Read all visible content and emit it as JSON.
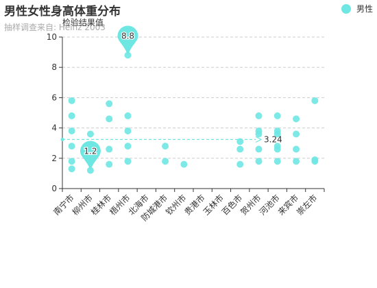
{
  "chart_data": {
    "type": "scatter",
    "title": "男性女性身高体重分布",
    "subtitle": "抽样调查来自: Heinz  2003",
    "ylabel": "检验结果值",
    "ylim": [
      0,
      10
    ],
    "yticks": [
      0,
      2,
      4,
      6,
      8,
      10
    ],
    "grid": true,
    "legend_position": "top-right",
    "categories": [
      "南宁市",
      "柳州市",
      "桂林市",
      "梧州市",
      "北海市",
      "防城港市",
      "钦州市",
      "贵港市",
      "玉林市",
      "百色市",
      "贺州市",
      "河池市",
      "来宾市",
      "崇左市"
    ],
    "series": [
      {
        "name": "男性",
        "color": "#6ee7e3",
        "points": [
          [
            "南宁市",
            5.8
          ],
          [
            "南宁市",
            4.8
          ],
          [
            "南宁市",
            3.8
          ],
          [
            "南宁市",
            2.8
          ],
          [
            "南宁市",
            1.8
          ],
          [
            "南宁市",
            1.3
          ],
          [
            "柳州市",
            3.6
          ],
          [
            "柳州市",
            2.6
          ],
          [
            "柳州市",
            1.2
          ],
          [
            "桂林市",
            5.6
          ],
          [
            "桂林市",
            4.6
          ],
          [
            "桂林市",
            2.6
          ],
          [
            "桂林市",
            1.6
          ],
          [
            "梧州市",
            8.8
          ],
          [
            "梧州市",
            4.8
          ],
          [
            "梧州市",
            3.8
          ],
          [
            "梧州市",
            2.8
          ],
          [
            "梧州市",
            1.8
          ],
          [
            "防城港市",
            2.8
          ],
          [
            "防城港市",
            1.8
          ],
          [
            "钦州市",
            1.6
          ],
          [
            "百色市",
            3.1
          ],
          [
            "百色市",
            2.6
          ],
          [
            "百色市",
            1.6
          ],
          [
            "贺州市",
            4.8
          ],
          [
            "贺州市",
            3.8
          ],
          [
            "贺州市",
            3.6
          ],
          [
            "贺州市",
            2.6
          ],
          [
            "贺州市",
            1.8
          ],
          [
            "河池市",
            4.8
          ],
          [
            "河池市",
            3.8
          ],
          [
            "河池市",
            3.6
          ],
          [
            "河池市",
            2.8
          ],
          [
            "河池市",
            2.6
          ],
          [
            "河池市",
            1.8
          ],
          [
            "来宾市",
            4.6
          ],
          [
            "来宾市",
            3.6
          ],
          [
            "来宾市",
            2.6
          ],
          [
            "来宾市",
            1.8
          ],
          [
            "崇左市",
            5.8
          ],
          [
            "崇左市",
            1.9
          ],
          [
            "崇左市",
            1.8
          ]
        ]
      }
    ],
    "mark_points": [
      {
        "label": "8.8",
        "category": "梧州市",
        "value": 8.8
      },
      {
        "label": "1.2",
        "category": "柳州市",
        "value": 1.2
      }
    ],
    "mark_line": {
      "label": "3.24",
      "value": 3.24
    }
  }
}
